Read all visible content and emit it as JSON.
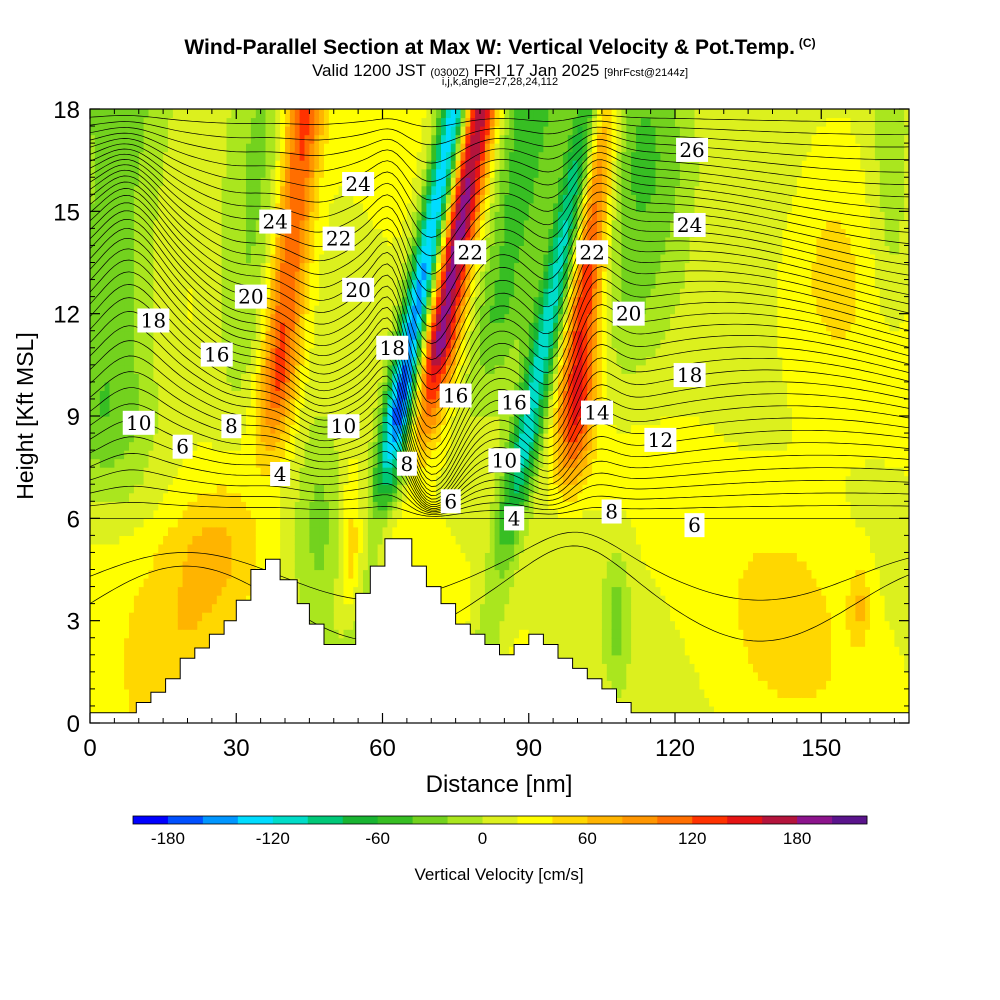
{
  "title": {
    "main": "Wind-Parallel Section at Max W: Vertical Velocity & Pot.Temp.",
    "copyright": "(C)",
    "valid_prefix": "Valid 1200 JST",
    "valid_utc": "(0300Z)",
    "valid_date": "FRI 17 Jan 2025",
    "forecast": "[9hrFcst@2144z]",
    "indices": "i,j,k,angle=27,28,24,112"
  },
  "chart_data": {
    "type": "heatmap",
    "xlabel": "Distance [nm]",
    "ylabel": "Height [Kft MSL]",
    "xlim": [
      0,
      168
    ],
    "ylim": [
      0,
      18
    ],
    "xticks": [
      0,
      30,
      60,
      90,
      120,
      150
    ],
    "yticks": [
      0,
      3,
      6,
      9,
      12,
      15,
      18
    ],
    "colorbar": {
      "label": "Vertical Velocity [cm/s]",
      "tick_labels": [
        "-180",
        "-120",
        "-60",
        "0",
        "60",
        "120",
        "180"
      ],
      "tick_values": [
        -180,
        -120,
        -60,
        0,
        60,
        120,
        180
      ],
      "range": [
        -200,
        220
      ],
      "step": 20,
      "colors": [
        "#0000ff",
        "#0050ff",
        "#0096ff",
        "#00dcff",
        "#00dcc8",
        "#00c878",
        "#19b432",
        "#37be23",
        "#73d21e",
        "#aae61e",
        "#dcf01e",
        "#ffff00",
        "#ffd700",
        "#ffb400",
        "#ff9600",
        "#ff6e00",
        "#ff3200",
        "#e61414",
        "#b4143c",
        "#8c148c",
        "#5a148c"
      ]
    },
    "terrain_profile": {
      "x": [
        0,
        9.5,
        9.5,
        12.5,
        12.5,
        15.5,
        15.5,
        18.5,
        18.5,
        21.5,
        21.5,
        24.5,
        24.5,
        27.5,
        27.5,
        30,
        30,
        33,
        33,
        36,
        36,
        39,
        39,
        42.5,
        42.5,
        45,
        45,
        48,
        48,
        51,
        51,
        54.5,
        54.5,
        57.5,
        57.5,
        60.5,
        60.5,
        66,
        66,
        69,
        69,
        72,
        72,
        75,
        75,
        78,
        78,
        81,
        81,
        84,
        84,
        87,
        87,
        90,
        90,
        93,
        93,
        96,
        96,
        99,
        99,
        102,
        102,
        105,
        105,
        108,
        108,
        111,
        111,
        114,
        114,
        117,
        117,
        120,
        120,
        168
      ],
      "height_kft": [
        0.3,
        0.3,
        0.6,
        0.6,
        0.9,
        0.9,
        1.3,
        1.3,
        1.9,
        1.9,
        2.2,
        2.2,
        2.6,
        2.6,
        3,
        3,
        3.6,
        3.6,
        4.5,
        4.5,
        4.8,
        4.8,
        4.2,
        4.2,
        3.5,
        3.5,
        2.9,
        2.9,
        2.3,
        2.3,
        2.3,
        2.3,
        3.8,
        3.8,
        4.6,
        4.6,
        5.4,
        5.4,
        4.6,
        4.6,
        4,
        4,
        3.5,
        3.5,
        2.9,
        2.9,
        2.6,
        2.6,
        2.3,
        2.3,
        2,
        2,
        2.3,
        2.3,
        2.6,
        2.6,
        2.3,
        2.3,
        1.9,
        1.9,
        1.6,
        1.6,
        1.3,
        1.3,
        1,
        1,
        0.6,
        0.6,
        0.3,
        0.3,
        0.3,
        0.3,
        0.3,
        0.3,
        0.3,
        0.3
      ]
    },
    "isentrope_labels": [
      {
        "text": "26",
        "x": 123.5,
        "y": 16.8
      },
      {
        "text": "24",
        "x": 38,
        "y": 14.7
      },
      {
        "text": "24",
        "x": 55,
        "y": 15.8
      },
      {
        "text": "24",
        "x": 123,
        "y": 14.6
      },
      {
        "text": "22",
        "x": 51,
        "y": 14.2
      },
      {
        "text": "22",
        "x": 78,
        "y": 13.8
      },
      {
        "text": "22",
        "x": 103,
        "y": 13.8
      },
      {
        "text": "20",
        "x": 33,
        "y": 12.5
      },
      {
        "text": "20",
        "x": 55,
        "y": 12.7
      },
      {
        "text": "20",
        "x": 110.5,
        "y": 12
      },
      {
        "text": "18",
        "x": 13,
        "y": 11.8
      },
      {
        "text": "18",
        "x": 62,
        "y": 11
      },
      {
        "text": "18",
        "x": 123,
        "y": 10.2
      },
      {
        "text": "16",
        "x": 26,
        "y": 10.8
      },
      {
        "text": "16",
        "x": 75,
        "y": 9.6
      },
      {
        "text": "16",
        "x": 87,
        "y": 9.4
      },
      {
        "text": "14",
        "x": 104,
        "y": 9.1
      },
      {
        "text": "12",
        "x": 117,
        "y": 8.3
      },
      {
        "text": "10",
        "x": 10,
        "y": 8.8
      },
      {
        "text": "10",
        "x": 52,
        "y": 8.7
      },
      {
        "text": "10",
        "x": 85,
        "y": 7.7
      },
      {
        "text": "8",
        "x": 29,
        "y": 8.7
      },
      {
        "text": "8",
        "x": 65,
        "y": 7.6
      },
      {
        "text": "8",
        "x": 107,
        "y": 6.2
      },
      {
        "text": "6",
        "x": 19,
        "y": 8.1
      },
      {
        "text": "6",
        "x": 74,
        "y": 6.5
      },
      {
        "text": "6",
        "x": 124,
        "y": 5.8
      },
      {
        "text": "4",
        "x": 39,
        "y": 7.3
      },
      {
        "text": "4",
        "x": 87,
        "y": 6
      },
      {
        "text": "4",
        "x": 87,
        "y": 6
      }
    ]
  }
}
